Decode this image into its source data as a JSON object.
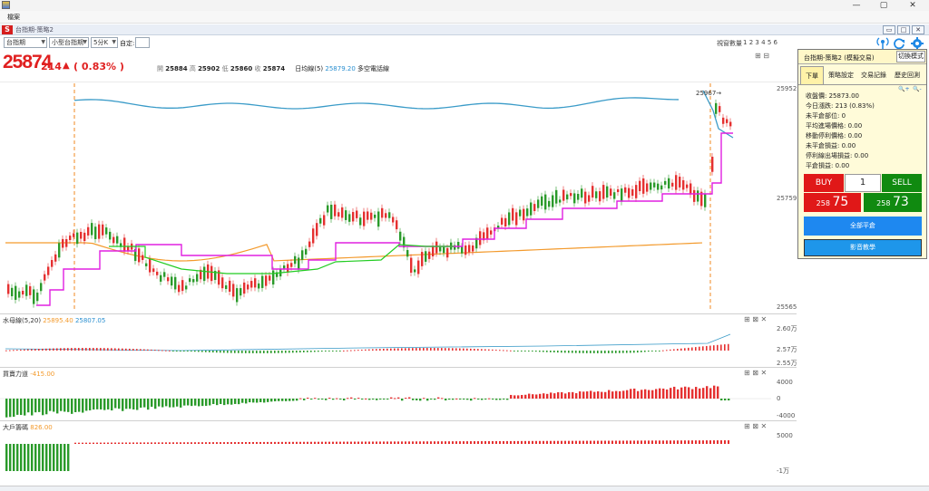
{
  "window": {
    "app_icon": "app-s-icon",
    "minimize_glyph": "—",
    "maximize_glyph": "▢",
    "close_glyph": "✕"
  },
  "menu": {
    "file": "檔案"
  },
  "document": {
    "tab_title": "台指期-策略2",
    "btn_restore": "▭",
    "btn_max": "□",
    "btn_close": "✕"
  },
  "toolbar": {
    "symbol": "台指期",
    "symbol2": "小型台指期",
    "interval": "5分K",
    "custom_label": "自定:",
    "custom_value": "",
    "layout_label": "視窗數量",
    "layouts": [
      "1",
      "2",
      "3",
      "4",
      "5",
      "6"
    ]
  },
  "quote": {
    "last": "25874",
    "change": "214",
    "direction": "▲",
    "change_pct": "( 0.83% )",
    "open_label": "開",
    "open": "25884",
    "high_label": "高",
    "high": "25902",
    "low_label": "低",
    "low": "25860",
    "close_label": "收",
    "close": "25874",
    "indicator_label": "日均線(5)",
    "indicator_value": "25879.20",
    "indicator_extra": "多空電話線"
  },
  "main_chart": {
    "axis_labels": [
      "25952",
      "25759",
      "25565"
    ],
    "marker_label": "25967→",
    "colors": {
      "up": "#e53030",
      "down": "#2a9a2a",
      "blue_line": "#3a9bc8",
      "orange_line": "#f39a2c",
      "magenta_line": "#e020e0",
      "green_line": "#22cc22",
      "dashed": "#f08a20"
    }
  },
  "pane1": {
    "title": "水母線(5,20)",
    "value1": "25895.40",
    "value2": "25807.05",
    "axis_labels": [
      "2.60万",
      "2.57万",
      "2.55万"
    ]
  },
  "pane2": {
    "title": "買賣力道",
    "value": "-415.00",
    "axis_labels": [
      "4000",
      "0",
      "-4000"
    ]
  },
  "pane3": {
    "title": "大戶籌碼",
    "value": "826.00",
    "axis_labels": [
      "5000",
      "-1万"
    ]
  },
  "pane_tools": "⊞ ⊠ ✕",
  "panel": {
    "title": "台指期-策略2 (模擬交易)",
    "mode_button": "切換模式",
    "tabs": [
      "下單",
      "策略設定",
      "交易記錄",
      "歷史回測"
    ],
    "zoom_in": "🔍+",
    "zoom_out": "🔍-",
    "info": [
      "收盤價: 25873.00",
      "今日漲跌: 213 (0.83%)",
      "未平倉部位: 0",
      "平均進場價格: 0.00",
      "移動停利價格: 0.00",
      "未平倉損益: 0.00",
      "停利線出場損益: 0.00",
      "平倉損益: 0.00"
    ],
    "buy_label": "BUY",
    "sell_label": "SELL",
    "qty": "1",
    "bid_prefix": "258",
    "bid_big": "75",
    "ask_prefix": "258",
    "ask_big": "73",
    "close_all": "全部平倉",
    "video": "影音教學"
  }
}
